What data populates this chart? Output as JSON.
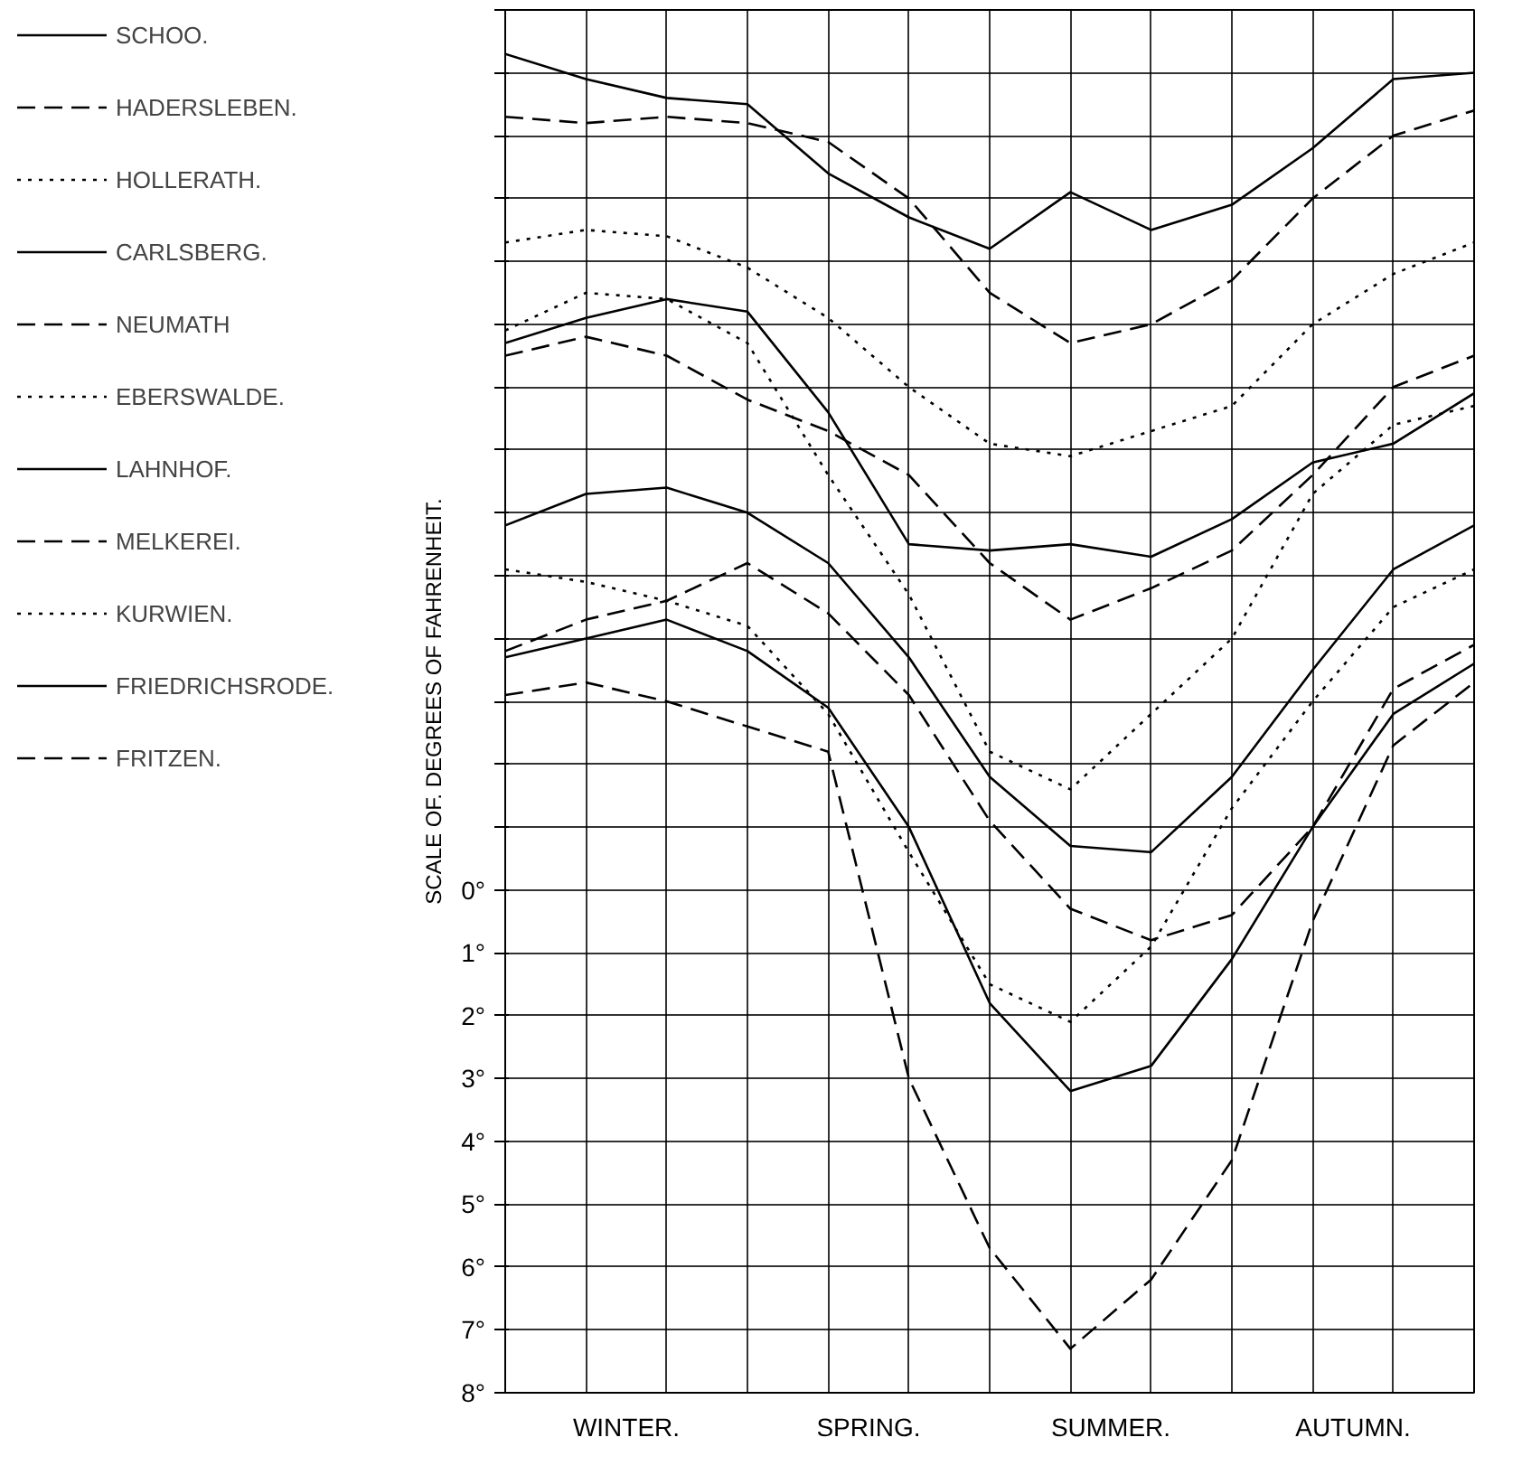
{
  "chart_data": {
    "type": "line",
    "ylabel": "SCALE OF. DEGREES OF FAHRENHEIT.",
    "categories": [
      null,
      null,
      null,
      null,
      null,
      null,
      null,
      null,
      null,
      null,
      null,
      null,
      null
    ],
    "annotations": [
      "WINTER.",
      "SPRING.",
      "SUMMER.",
      "AUTUMN."
    ],
    "ylim": [
      8,
      -14
    ],
    "yticks": [
      {
        "value": -14,
        "label": null
      },
      {
        "value": -13,
        "label": null
      },
      {
        "value": -12,
        "label": null
      },
      {
        "value": -11,
        "label": null
      },
      {
        "value": -10,
        "label": null
      },
      {
        "value": -9,
        "label": null
      },
      {
        "value": -8,
        "label": null
      },
      {
        "value": -7,
        "label": null
      },
      {
        "value": -6,
        "label": null
      },
      {
        "value": -5,
        "label": null
      },
      {
        "value": -4,
        "label": null
      },
      {
        "value": -3,
        "label": null
      },
      {
        "value": -2,
        "label": null
      },
      {
        "value": -1,
        "label": null
      },
      {
        "value": 0,
        "label": "0°"
      },
      {
        "value": 1,
        "label": "1°"
      },
      {
        "value": 2,
        "label": "2°"
      },
      {
        "value": 3,
        "label": "3°"
      },
      {
        "value": 4,
        "label": "4°"
      },
      {
        "value": 5,
        "label": "5°"
      },
      {
        "value": 6,
        "label": "6°"
      },
      {
        "value": 7,
        "label": "7°"
      },
      {
        "value": 8,
        "label": "8°"
      }
    ],
    "grid": true,
    "legend": "left",
    "series": [
      {
        "name": "SCHOO.",
        "color": "#000000",
        "line_style": "solid",
        "values": [
          -13.3,
          -12.9,
          -12.6,
          -12.5,
          -11.4,
          -10.7,
          -10.2,
          -11.1,
          -10.5,
          -10.9,
          -11.8,
          -12.9,
          -13.0
        ]
      },
      {
        "name": "HADERSLEBEN.",
        "color": "#000000",
        "line_style": "dashed",
        "values": [
          -12.3,
          -12.2,
          -12.3,
          -12.2,
          -11.9,
          -11.0,
          -9.5,
          -8.7,
          -9.0,
          -9.7,
          -11.0,
          -12.0,
          -12.4
        ]
      },
      {
        "name": "HOLLERATH.",
        "color": "#000000",
        "line_style": "dotted",
        "values": [
          -10.3,
          -10.5,
          -10.4,
          -9.9,
          -9.1,
          -8.0,
          -7.1,
          -6.9,
          -7.3,
          -7.7,
          -9.0,
          -9.8,
          -10.3
        ]
      },
      {
        "name": "CARLSBERG.",
        "color": "#000000",
        "line_style": "solid",
        "values": [
          -8.7,
          -9.1,
          -9.4,
          -9.2,
          -7.6,
          -5.5,
          -5.4,
          -5.5,
          -5.3,
          -5.9,
          -6.8,
          -7.1,
          -7.9
        ]
      },
      {
        "name": "NEUMATH",
        "color": "#000000",
        "line_style": "dashed",
        "values": [
          -8.5,
          -8.8,
          -8.5,
          -7.8,
          -7.3,
          -6.6,
          -5.2,
          -4.3,
          -4.8,
          -5.4,
          -6.6,
          -8.0,
          -8.5
        ]
      },
      {
        "name": "EBERSWALDE.",
        "color": "#000000",
        "line_style": "dotted",
        "values": [
          -8.9,
          -9.5,
          -9.4,
          -8.7,
          -6.6,
          -4.7,
          -2.2,
          -1.6,
          -2.8,
          -4.0,
          -6.3,
          -7.4,
          -7.7
        ]
      },
      {
        "name": "LAHNHOF.",
        "color": "#000000",
        "line_style": "solid",
        "values": [
          -5.8,
          -6.3,
          -6.4,
          -6.0,
          -5.2,
          -3.7,
          -1.8,
          -0.7,
          -0.6,
          -1.8,
          -3.5,
          -5.1,
          -5.8
        ]
      },
      {
        "name": "MELKEREI.",
        "color": "#000000",
        "line_style": "dashed",
        "values": [
          -3.8,
          -4.3,
          -4.6,
          -5.2,
          -4.4,
          -3.1,
          -1.1,
          0.3,
          0.8,
          0.4,
          -1.0,
          -3.2,
          -3.9
        ]
      },
      {
        "name": "KURWIEN.",
        "color": "#000000",
        "line_style": "dotted",
        "values": [
          -5.1,
          -4.9,
          -4.6,
          -4.2,
          -2.8,
          -0.6,
          1.5,
          2.1,
          0.9,
          -1.3,
          -3.0,
          -4.5,
          -5.1
        ]
      },
      {
        "name": "FRIEDRICHSRODE.",
        "color": "#000000",
        "line_style": "solid",
        "values": [
          -3.7,
          -4.0,
          -4.3,
          -3.8,
          -2.9,
          -1.0,
          1.8,
          3.2,
          2.8,
          1.1,
          -1.0,
          -2.8,
          -3.6
        ]
      },
      {
        "name": "FRITZEN.",
        "color": "#000000",
        "line_style": "dashed",
        "values": [
          -3.1,
          -3.3,
          -3.0,
          -2.6,
          -2.2,
          3.0,
          5.7,
          7.3,
          6.2,
          4.3,
          0.5,
          -2.3,
          -3.3
        ]
      }
    ]
  }
}
